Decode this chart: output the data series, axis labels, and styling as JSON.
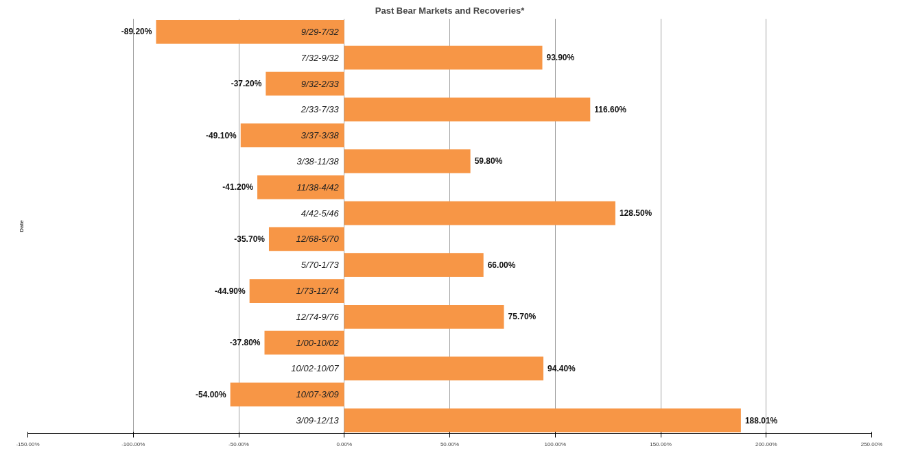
{
  "chart_data": {
    "type": "bar",
    "orientation": "horizontal",
    "title": "Past Bear Markets and Recoveries*",
    "ylabel": "Date",
    "categories": [
      "9/29-7/32",
      "7/32-9/32",
      "9/32-2/33",
      "2/33-7/33",
      "3/37-3/38",
      "3/38-11/38",
      "11/38-4/42",
      "4/42-5/46",
      "12/68-5/70",
      "5/70-1/73",
      "1/73-12/74",
      "12/74-9/76",
      "1/00-10/02",
      "10/02-10/07",
      "10/07-3/09",
      "3/09-12/13"
    ],
    "values": [
      -89.2,
      93.9,
      -37.2,
      116.6,
      -49.1,
      59.8,
      -41.2,
      128.5,
      -35.7,
      66.0,
      -44.9,
      75.7,
      -37.8,
      94.4,
      -54.0,
      188.01
    ],
    "value_labels": [
      "-89.20%",
      "93.90%",
      "-37.20%",
      "116.60%",
      "-49.10%",
      "59.80%",
      "-41.20%",
      "128.50%",
      "-35.70%",
      "66.00%",
      "-44.90%",
      "75.70%",
      "-37.80%",
      "94.40%",
      "-54.00%",
      "188.01%"
    ],
    "color": "#f79646",
    "xlim": [
      -150,
      250
    ],
    "xticks": [
      {
        "value": -150,
        "label": "-150.00%"
      },
      {
        "value": -100,
        "label": "-100.00%"
      },
      {
        "value": -50,
        "label": "-50.00%"
      },
      {
        "value": 0,
        "label": "0.00%"
      },
      {
        "value": 50,
        "label": "50.00%"
      },
      {
        "value": 100,
        "label": "100.00%"
      },
      {
        "value": 150,
        "label": "150.00%"
      },
      {
        "value": 200,
        "label": "200.00%"
      },
      {
        "value": 250,
        "label": "250.00%"
      }
    ],
    "grid": "x",
    "tick_labels": "x"
  }
}
